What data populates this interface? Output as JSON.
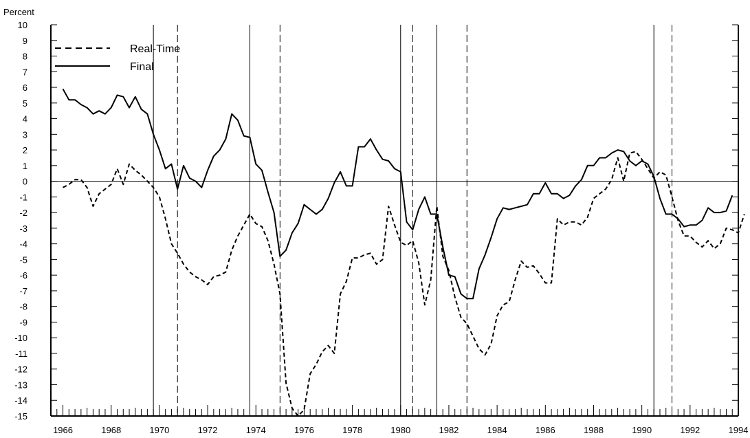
{
  "chart_data": {
    "type": "line",
    "ylabel": "Percent",
    "ylim": [
      -15,
      10
    ],
    "xlim": [
      1965.5,
      1994
    ],
    "x_ticks": [
      1966,
      1968,
      1970,
      1972,
      1974,
      1976,
      1978,
      1980,
      1982,
      1984,
      1986,
      1988,
      1990,
      1992,
      1994
    ],
    "y_ticks": [
      10,
      9,
      8,
      7,
      6,
      5,
      4,
      3,
      2,
      1,
      0,
      -1,
      -2,
      -3,
      -4,
      -5,
      -6,
      -7,
      -8,
      -9,
      -10,
      -11,
      -12,
      -13,
      -14,
      -15
    ],
    "zero_line": true,
    "legend": {
      "position": "top-left",
      "entries": [
        "Real-Time",
        "Final"
      ]
    },
    "series": [
      {
        "name": "Real-Time",
        "style": "dashed",
        "points": [
          [
            1966.0,
            -0.4
          ],
          [
            1966.25,
            -0.2
          ],
          [
            1966.5,
            0.1
          ],
          [
            1966.75,
            0.1
          ],
          [
            1967.0,
            -0.4
          ],
          [
            1967.25,
            -1.6
          ],
          [
            1967.5,
            -0.8
          ],
          [
            1967.75,
            -0.5
          ],
          [
            1968.0,
            -0.2
          ],
          [
            1968.25,
            0.8
          ],
          [
            1968.5,
            -0.2
          ],
          [
            1968.75,
            1.1
          ],
          [
            1969.0,
            0.7
          ],
          [
            1969.25,
            0.4
          ],
          [
            1969.5,
            0.0
          ],
          [
            1969.75,
            -0.4
          ],
          [
            1970.0,
            -1.0
          ],
          [
            1970.25,
            -2.4
          ],
          [
            1970.5,
            -4.0
          ],
          [
            1970.75,
            -4.6
          ],
          [
            1971.0,
            -5.3
          ],
          [
            1971.25,
            -5.8
          ],
          [
            1971.5,
            -6.1
          ],
          [
            1971.75,
            -6.3
          ],
          [
            1972.0,
            -6.6
          ],
          [
            1972.25,
            -6.1
          ],
          [
            1972.5,
            -6.0
          ],
          [
            1972.75,
            -5.8
          ],
          [
            1973.0,
            -4.4
          ],
          [
            1973.25,
            -3.5
          ],
          [
            1973.5,
            -2.8
          ],
          [
            1973.75,
            -2.1
          ],
          [
            1974.0,
            -2.7
          ],
          [
            1974.25,
            -2.9
          ],
          [
            1974.5,
            -3.8
          ],
          [
            1974.75,
            -5.3
          ],
          [
            1975.0,
            -7.2
          ],
          [
            1975.25,
            -12.9
          ],
          [
            1975.5,
            -14.5
          ],
          [
            1975.75,
            -15.0
          ],
          [
            1976.0,
            -14.6
          ],
          [
            1976.25,
            -12.3
          ],
          [
            1976.5,
            -11.7
          ],
          [
            1976.75,
            -10.9
          ],
          [
            1977.0,
            -10.5
          ],
          [
            1977.25,
            -11.0
          ],
          [
            1977.5,
            -7.2
          ],
          [
            1977.75,
            -6.4
          ],
          [
            1978.0,
            -4.9
          ],
          [
            1978.25,
            -4.9
          ],
          [
            1978.5,
            -4.7
          ],
          [
            1978.75,
            -4.6
          ],
          [
            1979.0,
            -5.3
          ],
          [
            1979.25,
            -5.0
          ],
          [
            1979.5,
            -1.6
          ],
          [
            1979.75,
            -2.8
          ],
          [
            1980.0,
            -3.9
          ],
          [
            1980.25,
            -4.1
          ],
          [
            1980.5,
            -3.8
          ],
          [
            1980.75,
            -5.2
          ],
          [
            1981.0,
            -7.9
          ],
          [
            1981.25,
            -6.3
          ],
          [
            1981.5,
            -1.6
          ],
          [
            1981.75,
            -4.8
          ],
          [
            1982.0,
            -5.7
          ],
          [
            1982.25,
            -7.4
          ],
          [
            1982.5,
            -8.7
          ],
          [
            1982.75,
            -9.1
          ],
          [
            1983.0,
            -9.9
          ],
          [
            1983.25,
            -10.7
          ],
          [
            1983.5,
            -11.1
          ],
          [
            1983.75,
            -10.4
          ],
          [
            1984.0,
            -8.6
          ],
          [
            1984.25,
            -7.9
          ],
          [
            1984.5,
            -7.7
          ],
          [
            1984.75,
            -6.3
          ],
          [
            1985.0,
            -5.1
          ],
          [
            1985.25,
            -5.5
          ],
          [
            1985.5,
            -5.4
          ],
          [
            1985.75,
            -5.9
          ],
          [
            1986.0,
            -6.5
          ],
          [
            1986.25,
            -6.5
          ],
          [
            1986.5,
            -2.4
          ],
          [
            1986.75,
            -2.8
          ],
          [
            1987.0,
            -2.6
          ],
          [
            1987.25,
            -2.6
          ],
          [
            1987.5,
            -2.8
          ],
          [
            1987.75,
            -2.3
          ],
          [
            1988.0,
            -1.1
          ],
          [
            1988.25,
            -0.8
          ],
          [
            1988.5,
            -0.5
          ],
          [
            1988.75,
            0.1
          ],
          [
            1989.0,
            1.5
          ],
          [
            1989.25,
            0.0
          ],
          [
            1989.5,
            1.8
          ],
          [
            1989.75,
            1.9
          ],
          [
            1990.0,
            1.4
          ],
          [
            1990.25,
            0.8
          ],
          [
            1990.5,
            0.2
          ],
          [
            1990.75,
            0.6
          ],
          [
            1991.0,
            0.4
          ],
          [
            1991.25,
            -1.0
          ],
          [
            1991.5,
            -2.5
          ],
          [
            1991.75,
            -3.5
          ],
          [
            1992.0,
            -3.5
          ],
          [
            1992.25,
            -3.9
          ],
          [
            1992.5,
            -4.2
          ],
          [
            1992.75,
            -3.8
          ],
          [
            1993.0,
            -4.3
          ],
          [
            1993.25,
            -4.0
          ],
          [
            1993.5,
            -3.0
          ],
          [
            1993.75,
            -3.1
          ],
          [
            1994.0,
            -3.3
          ],
          [
            1994.25,
            -2.1
          ]
        ]
      },
      {
        "name": "Final",
        "style": "solid",
        "points": [
          [
            1966.0,
            5.9
          ],
          [
            1966.25,
            5.2
          ],
          [
            1966.5,
            5.2
          ],
          [
            1966.75,
            4.9
          ],
          [
            1967.0,
            4.7
          ],
          [
            1967.25,
            4.3
          ],
          [
            1967.5,
            4.5
          ],
          [
            1967.75,
            4.3
          ],
          [
            1968.0,
            4.7
          ],
          [
            1968.25,
            5.5
          ],
          [
            1968.5,
            5.4
          ],
          [
            1968.75,
            4.7
          ],
          [
            1969.0,
            5.4
          ],
          [
            1969.25,
            4.6
          ],
          [
            1969.5,
            4.3
          ],
          [
            1969.75,
            3.0
          ],
          [
            1970.0,
            2.0
          ],
          [
            1970.25,
            0.8
          ],
          [
            1970.5,
            1.1
          ],
          [
            1970.75,
            -0.5
          ],
          [
            1971.0,
            1.0
          ],
          [
            1971.25,
            0.2
          ],
          [
            1971.5,
            0.0
          ],
          [
            1971.75,
            -0.4
          ],
          [
            1972.0,
            0.7
          ],
          [
            1972.25,
            1.6
          ],
          [
            1972.5,
            2.0
          ],
          [
            1972.75,
            2.7
          ],
          [
            1973.0,
            4.3
          ],
          [
            1973.25,
            3.9
          ],
          [
            1973.5,
            2.9
          ],
          [
            1973.75,
            2.8
          ],
          [
            1974.0,
            1.1
          ],
          [
            1974.25,
            0.7
          ],
          [
            1974.5,
            -0.7
          ],
          [
            1974.75,
            -2.0
          ],
          [
            1975.0,
            -4.8
          ],
          [
            1975.25,
            -4.4
          ],
          [
            1975.5,
            -3.3
          ],
          [
            1975.75,
            -2.7
          ],
          [
            1976.0,
            -1.5
          ],
          [
            1976.25,
            -1.8
          ],
          [
            1976.5,
            -2.1
          ],
          [
            1976.75,
            -1.8
          ],
          [
            1977.0,
            -1.1
          ],
          [
            1977.25,
            -0.1
          ],
          [
            1977.5,
            0.6
          ],
          [
            1977.75,
            -0.3
          ],
          [
            1978.0,
            -0.3
          ],
          [
            1978.25,
            2.2
          ],
          [
            1978.5,
            2.2
          ],
          [
            1978.75,
            2.7
          ],
          [
            1979.0,
            2.0
          ],
          [
            1979.25,
            1.4
          ],
          [
            1979.5,
            1.3
          ],
          [
            1979.75,
            0.8
          ],
          [
            1980.0,
            0.6
          ],
          [
            1980.25,
            -2.6
          ],
          [
            1980.5,
            -3.1
          ],
          [
            1980.75,
            -1.8
          ],
          [
            1981.0,
            -1.0
          ],
          [
            1981.25,
            -2.1
          ],
          [
            1981.5,
            -2.1
          ],
          [
            1981.75,
            -4.2
          ],
          [
            1982.0,
            -6.0
          ],
          [
            1982.25,
            -6.1
          ],
          [
            1982.5,
            -7.2
          ],
          [
            1982.75,
            -7.5
          ],
          [
            1983.0,
            -7.5
          ],
          [
            1983.25,
            -5.6
          ],
          [
            1983.5,
            -4.7
          ],
          [
            1983.75,
            -3.6
          ],
          [
            1984.0,
            -2.4
          ],
          [
            1984.25,
            -1.7
          ],
          [
            1984.5,
            -1.8
          ],
          [
            1984.75,
            -1.7
          ],
          [
            1985.0,
            -1.6
          ],
          [
            1985.25,
            -1.5
          ],
          [
            1985.5,
            -0.8
          ],
          [
            1985.75,
            -0.8
          ],
          [
            1986.0,
            -0.1
          ],
          [
            1986.25,
            -0.8
          ],
          [
            1986.5,
            -0.8
          ],
          [
            1986.75,
            -1.1
          ],
          [
            1987.0,
            -0.9
          ],
          [
            1987.25,
            -0.3
          ],
          [
            1987.5,
            0.1
          ],
          [
            1987.75,
            1.0
          ],
          [
            1988.0,
            1.0
          ],
          [
            1988.25,
            1.5
          ],
          [
            1988.5,
            1.5
          ],
          [
            1988.75,
            1.8
          ],
          [
            1989.0,
            2.0
          ],
          [
            1989.25,
            1.9
          ],
          [
            1989.5,
            1.3
          ],
          [
            1989.75,
            1.0
          ],
          [
            1990.0,
            1.3
          ],
          [
            1990.25,
            1.1
          ],
          [
            1990.5,
            0.3
          ],
          [
            1990.75,
            -1.1
          ],
          [
            1991.0,
            -2.1
          ],
          [
            1991.25,
            -2.1
          ],
          [
            1991.5,
            -2.4
          ],
          [
            1991.75,
            -2.9
          ],
          [
            1992.0,
            -2.8
          ],
          [
            1992.25,
            -2.8
          ],
          [
            1992.5,
            -2.5
          ],
          [
            1992.75,
            -1.7
          ],
          [
            1993.0,
            -2.0
          ],
          [
            1993.25,
            -2.0
          ],
          [
            1993.5,
            -1.9
          ],
          [
            1993.75,
            -0.9
          ]
        ]
      }
    ],
    "vertical_lines": [
      {
        "x": 1969.75,
        "style": "solid"
      },
      {
        "x": 1970.75,
        "style": "dashed"
      },
      {
        "x": 1973.75,
        "style": "solid"
      },
      {
        "x": 1975.0,
        "style": "dashed"
      },
      {
        "x": 1980.0,
        "style": "solid"
      },
      {
        "x": 1980.5,
        "style": "dashed"
      },
      {
        "x": 1981.5,
        "style": "solid"
      },
      {
        "x": 1982.75,
        "style": "dashed"
      },
      {
        "x": 1990.5,
        "style": "solid"
      },
      {
        "x": 1991.25,
        "style": "dashed"
      }
    ]
  }
}
